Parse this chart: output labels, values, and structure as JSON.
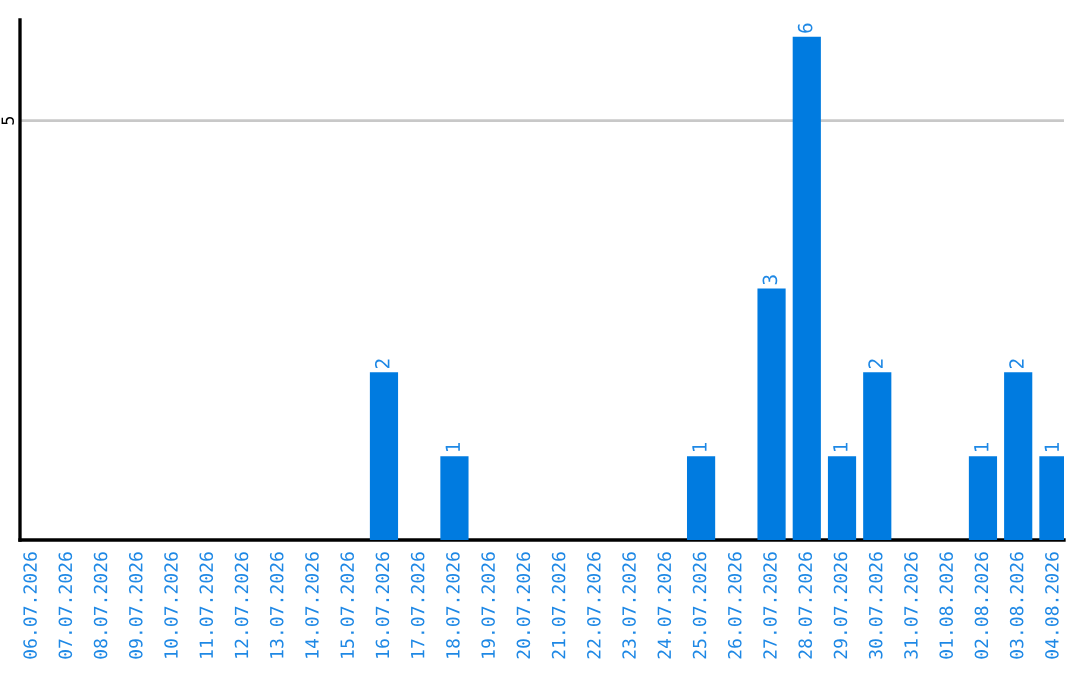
{
  "chart_data": {
    "type": "bar",
    "categories": [
      "06.07.2026",
      "07.07.2026",
      "08.07.2026",
      "09.07.2026",
      "10.07.2026",
      "11.07.2026",
      "12.07.2026",
      "13.07.2026",
      "14.07.2026",
      "15.07.2026",
      "16.07.2026",
      "17.07.2026",
      "18.07.2026",
      "19.07.2026",
      "20.07.2026",
      "21.07.2026",
      "22.07.2026",
      "23.07.2026",
      "24.07.2026",
      "25.07.2026",
      "26.07.2026",
      "27.07.2026",
      "28.07.2026",
      "29.07.2026",
      "30.07.2026",
      "31.07.2026",
      "01.08.2026",
      "02.08.2026",
      "03.08.2026",
      "04.08.2026"
    ],
    "values": [
      0,
      0,
      0,
      0,
      0,
      0,
      0,
      0,
      0,
      0,
      2,
      0,
      1,
      0,
      0,
      0,
      0,
      0,
      0,
      1,
      0,
      3,
      6,
      1,
      2,
      0,
      0,
      1,
      2,
      1
    ],
    "value_labels": [
      null,
      null,
      null,
      null,
      null,
      null,
      null,
      null,
      null,
      null,
      "2",
      null,
      "1",
      null,
      null,
      null,
      null,
      null,
      null,
      "1",
      null,
      "3",
      "6",
      "1",
      "2",
      null,
      null,
      "1",
      "2",
      "1"
    ],
    "color": "#007be0",
    "ylim": [
      0,
      6.2
    ],
    "yticks": [
      5
    ],
    "grid": "y"
  }
}
